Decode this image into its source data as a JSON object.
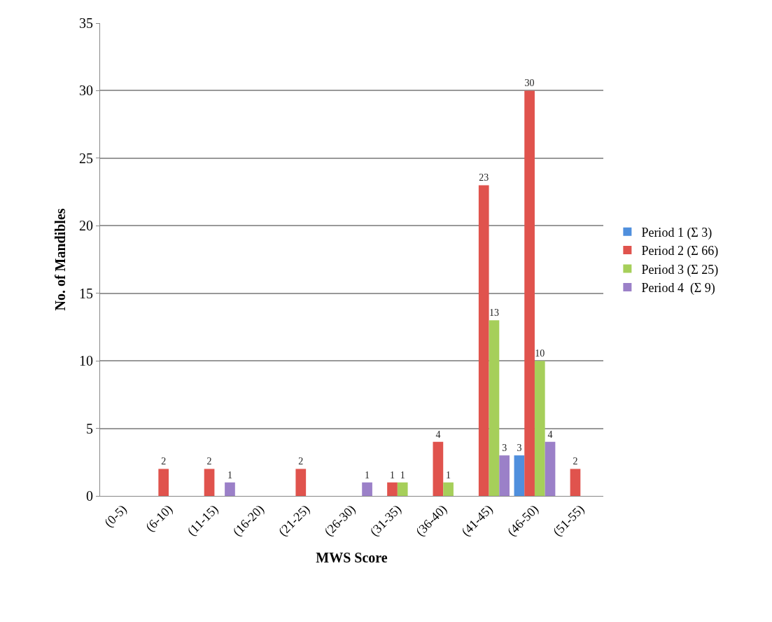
{
  "chart_data": {
    "type": "bar",
    "xlabel": "MWS Score",
    "ylabel": "No. of Mandibles",
    "categories": [
      "(0-5)",
      "(6-10)",
      "(11-15)",
      "(16-20)",
      "(21-25)",
      "(26-30)",
      "(31-35)",
      "(36-40)",
      "(41-45)",
      "(46-50)",
      "(51-55)"
    ],
    "series": [
      {
        "name": "Period 1 (Σ 3)",
        "color": "#4f8fdd",
        "values": [
          0,
          0,
          0,
          0,
          0,
          0,
          0,
          0,
          0,
          3,
          0
        ],
        "value_labels": [
          null,
          null,
          null,
          null,
          null,
          null,
          null,
          null,
          null,
          "3",
          null
        ]
      },
      {
        "name": "Period 2 (Σ 66)",
        "color": "#e0534d",
        "values": [
          0,
          2,
          2,
          0,
          2,
          0,
          1,
          4,
          23,
          30,
          2
        ],
        "value_labels": [
          null,
          "2",
          "2",
          null,
          "2",
          null,
          "1",
          "4",
          "23",
          "30",
          "2"
        ]
      },
      {
        "name": "Period 3 (Σ 25)",
        "color": "#a6cf5a",
        "values": [
          0,
          0,
          0,
          0,
          0,
          0,
          1,
          1,
          13,
          10,
          0
        ],
        "value_labels": [
          null,
          null,
          null,
          null,
          null,
          null,
          "1",
          "1",
          "13",
          "10",
          null
        ]
      },
      {
        "name": "Period 4  (Σ 9)",
        "color": "#9b80c8",
        "values": [
          0,
          0,
          1,
          0,
          0,
          1,
          0,
          0,
          3,
          4,
          0
        ],
        "value_labels": [
          null,
          null,
          "1",
          null,
          null,
          "1",
          null,
          null,
          "3",
          "4",
          null
        ]
      }
    ],
    "ylim": [
      0,
      35
    ],
    "yticks": [
      0,
      5,
      10,
      15,
      20,
      25,
      30,
      35
    ],
    "grid": "y",
    "legend": "right"
  }
}
